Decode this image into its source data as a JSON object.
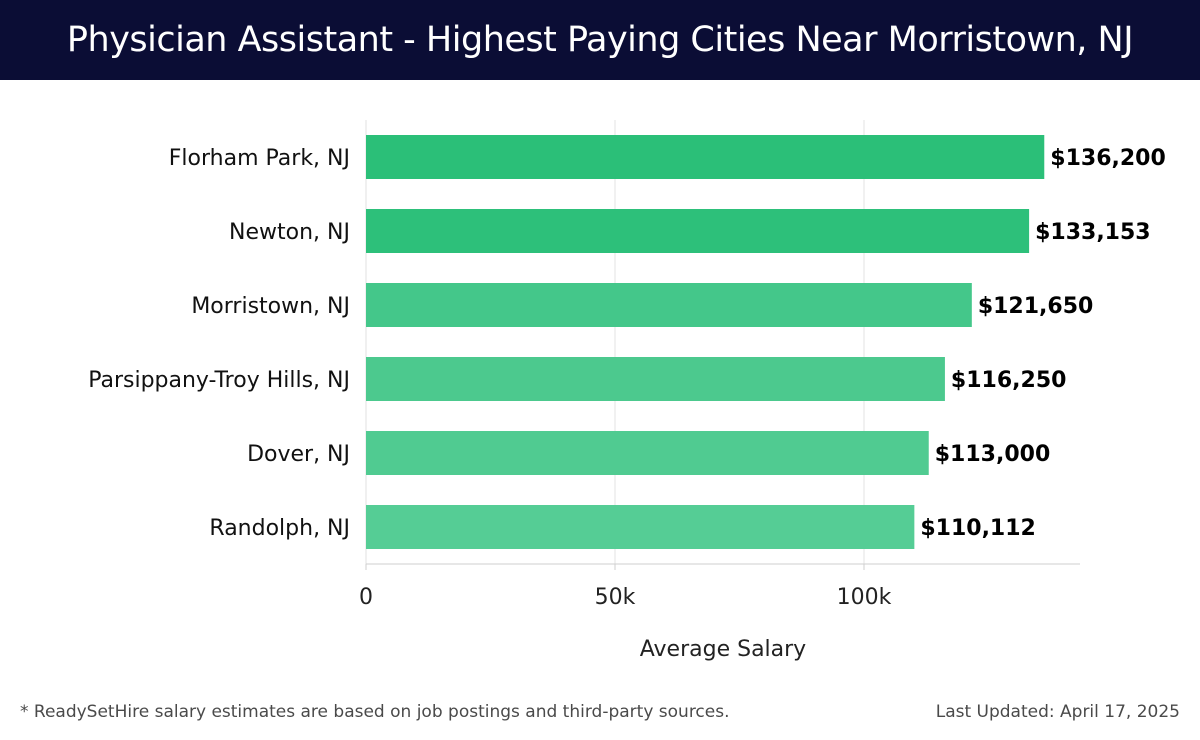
{
  "header": {
    "title": "Physician Assistant - Highest Paying Cities Near Morristown, NJ"
  },
  "footer": {
    "note": "* ReadySetHire salary estimates are based on job postings and third-party sources.",
    "updated": "Last Updated: April 17, 2025"
  },
  "chart_data": {
    "type": "bar",
    "orientation": "horizontal",
    "title": "Physician Assistant - Highest Paying Cities Near Morristown, NJ",
    "xlabel": "Average Salary",
    "ylabel": "",
    "categories": [
      "Florham Park, NJ",
      "Newton, NJ",
      "Morristown, NJ",
      "Parsippany-Troy Hills, NJ",
      "Dover, NJ",
      "Randolph, NJ"
    ],
    "values": [
      136200,
      133153,
      121650,
      116250,
      113000,
      110112
    ],
    "value_labels": [
      "$136,200",
      "$133,153",
      "$121,650",
      "$116,250",
      "$113,000",
      "$110,112"
    ],
    "xticks": [
      0,
      50000,
      100000
    ],
    "xtick_labels": [
      "0",
      "50k",
      "100k"
    ],
    "xlim": [
      0,
      143000
    ],
    "grid": true,
    "colors": [
      "#2bbf78",
      "#2dc07a",
      "#44c78a",
      "#4cc98e",
      "#50cb91",
      "#55cd95"
    ]
  }
}
